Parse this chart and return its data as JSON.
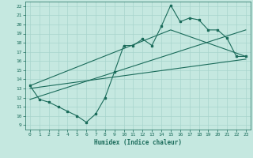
{
  "xlabel": "Humidex (Indice chaleur)",
  "bg_color": "#c5e8e0",
  "grid_color": "#a8d4cc",
  "line_color": "#1a6b5a",
  "xlim": [
    -0.5,
    23.5
  ],
  "ylim": [
    8.5,
    22.5
  ],
  "xticks": [
    0,
    1,
    2,
    3,
    4,
    5,
    6,
    7,
    8,
    9,
    10,
    11,
    12,
    13,
    14,
    15,
    16,
    17,
    18,
    19,
    20,
    21,
    22,
    23
  ],
  "yticks": [
    9,
    10,
    11,
    12,
    13,
    14,
    15,
    16,
    17,
    18,
    19,
    20,
    21,
    22
  ],
  "main_x": [
    0,
    1,
    2,
    3,
    4,
    5,
    6,
    7,
    8,
    9,
    10,
    11,
    12,
    13,
    14,
    15,
    16,
    17,
    18,
    19,
    20,
    21,
    22,
    23
  ],
  "main_y": [
    13.3,
    11.8,
    11.5,
    11.0,
    10.5,
    10.0,
    9.3,
    10.2,
    12.0,
    14.8,
    17.7,
    17.7,
    18.4,
    17.7,
    19.8,
    22.1,
    20.3,
    20.7,
    20.5,
    19.4,
    19.4,
    18.5,
    16.5,
    16.5
  ],
  "trend1_x": [
    0,
    23
  ],
  "trend1_y": [
    11.8,
    19.4
  ],
  "trend2_x": [
    0,
    23
  ],
  "trend2_y": [
    13.0,
    16.2
  ],
  "trend3_x": [
    0,
    15,
    23
  ],
  "trend3_y": [
    13.3,
    19.4,
    16.5
  ]
}
